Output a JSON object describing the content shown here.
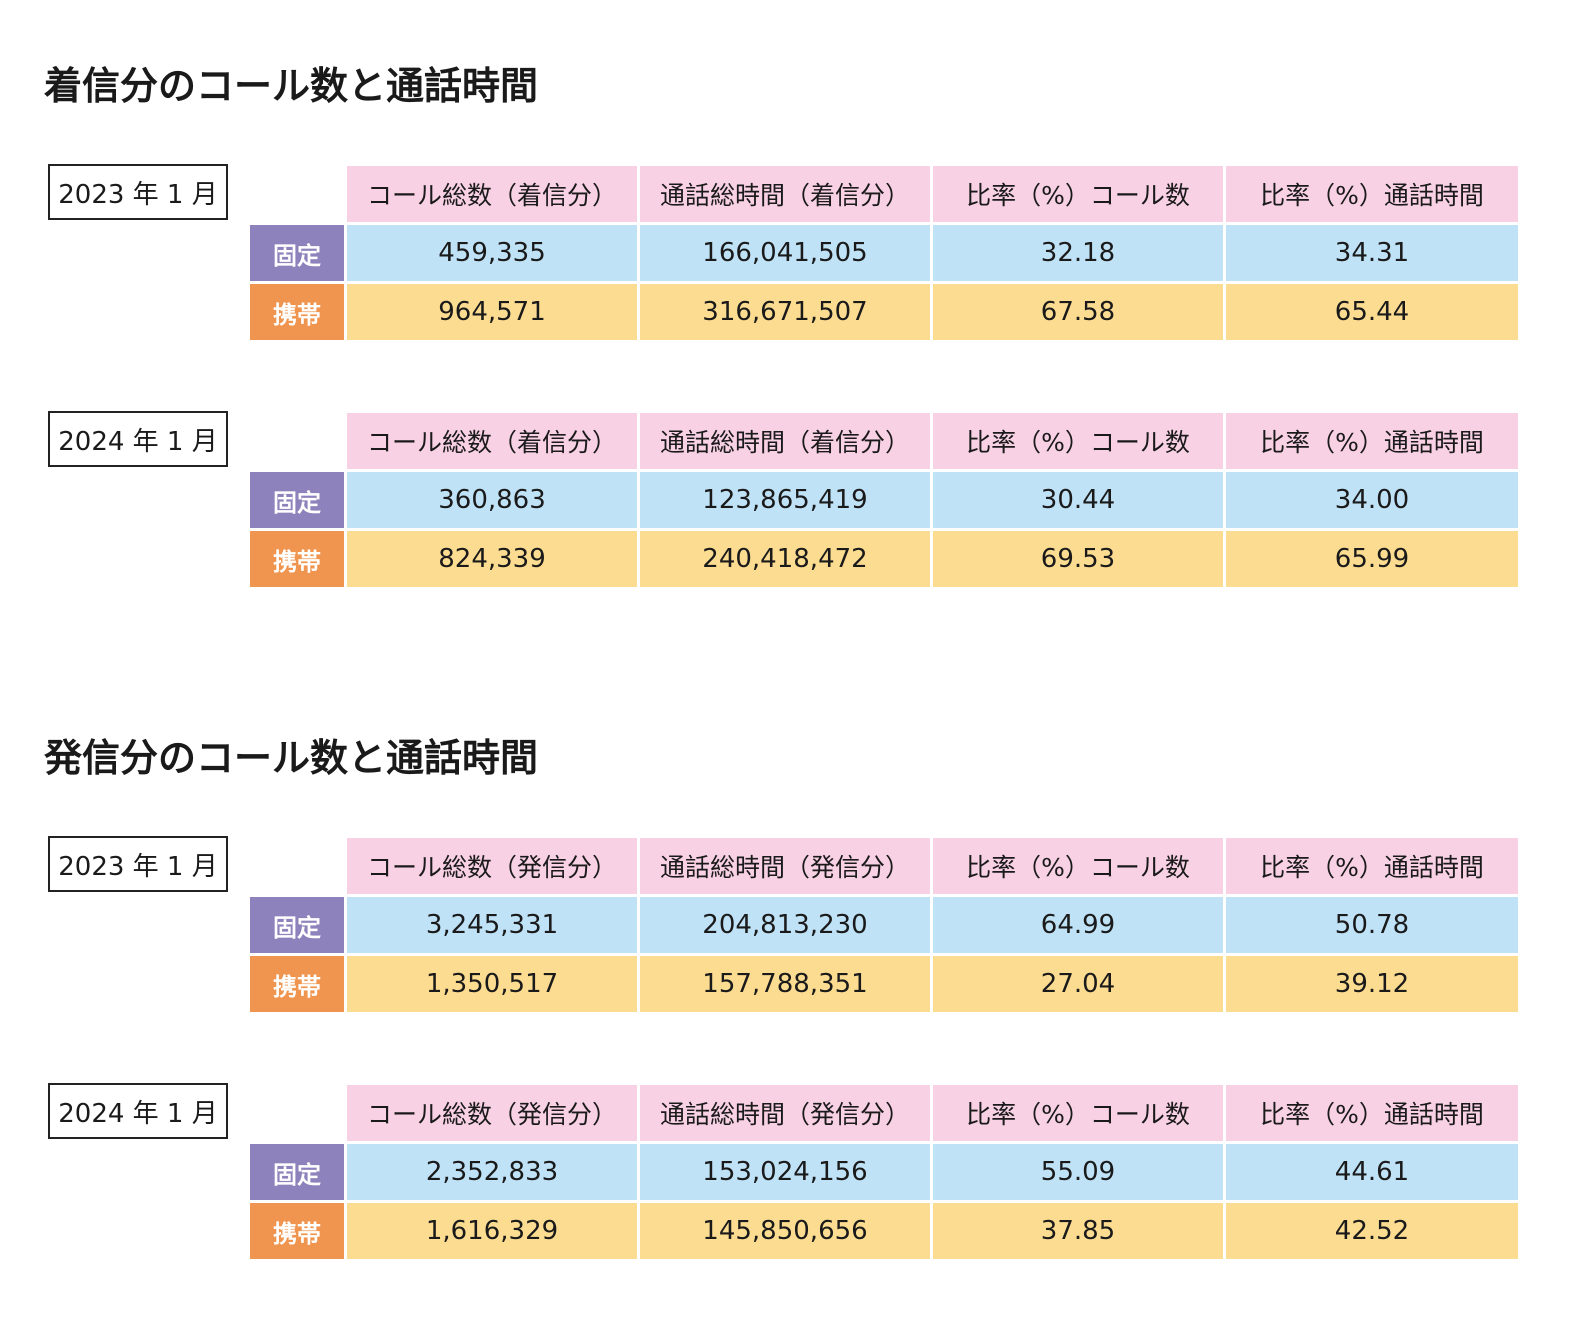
{
  "sections": [
    {
      "title": "着信分のコール数と通話時間",
      "tables": [
        {
          "period": "2023 年 1 月",
          "headers": [
            "コール総数（着信分）",
            "通話総時間（着信分）",
            "比率（%）コール数",
            "比率（%）通話時間"
          ],
          "rows": [
            {
              "label": "固定",
              "values": [
                "459,335",
                "166,041,505",
                "32.18",
                "34.31"
              ]
            },
            {
              "label": "携帯",
              "values": [
                "964,571",
                "316,671,507",
                "67.58",
                "65.44"
              ]
            }
          ]
        },
        {
          "period": "2024 年 1 月",
          "headers": [
            "コール総数（着信分）",
            "通話総時間（着信分）",
            "比率（%）コール数",
            "比率（%）通話時間"
          ],
          "rows": [
            {
              "label": "固定",
              "values": [
                "360,863",
                "123,865,419",
                "30.44",
                "34.00"
              ]
            },
            {
              "label": "携帯",
              "values": [
                "824,339",
                "240,418,472",
                "69.53",
                "65.99"
              ]
            }
          ]
        }
      ]
    },
    {
      "title": "発信分のコール数と通話時間",
      "tables": [
        {
          "period": "2023 年 1 月",
          "headers": [
            "コール総数（発信分）",
            "通話総時間（発信分）",
            "比率（%）コール数",
            "比率（%）通話時間"
          ],
          "rows": [
            {
              "label": "固定",
              "values": [
                "3,245,331",
                "204,813,230",
                "64.99",
                "50.78"
              ]
            },
            {
              "label": "携帯",
              "values": [
                "1,350,517",
                "157,788,351",
                "27.04",
                "39.12"
              ]
            }
          ]
        },
        {
          "period": "2024 年 1 月",
          "headers": [
            "コール総数（発信分）",
            "通話総時間（発信分）",
            "比率（%）コール数",
            "比率（%）通話時間"
          ],
          "rows": [
            {
              "label": "固定",
              "values": [
                "2,352,833",
                "153,024,156",
                "55.09",
                "44.61"
              ]
            },
            {
              "label": "携帯",
              "values": [
                "1,616,329",
                "145,850,656",
                "37.85",
                "42.52"
              ]
            }
          ]
        }
      ]
    }
  ],
  "colors": {
    "header_bg": "#f9d1e4",
    "fixed_label_bg": "#8d82bb",
    "fixed_value_bg": "#bfe2f7",
    "mobile_label_bg": "#f0954f",
    "mobile_value_bg": "#fcdc91"
  }
}
